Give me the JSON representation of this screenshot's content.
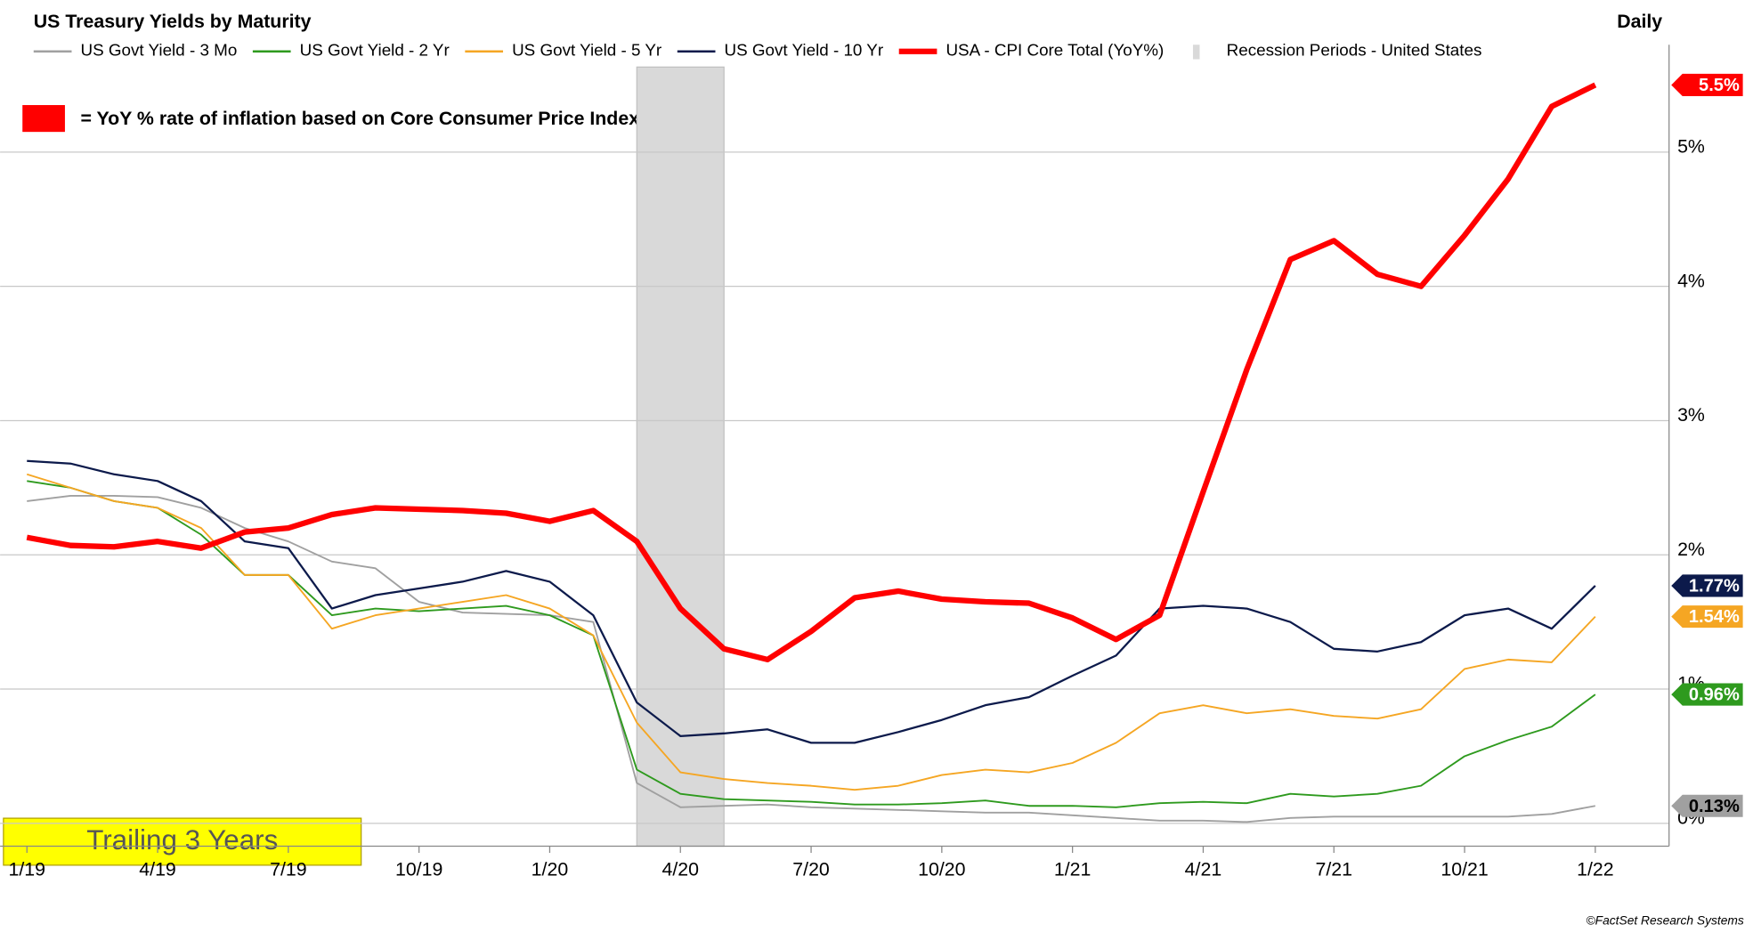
{
  "chart_data": {
    "type": "line",
    "title": "US Treasury Yields by Maturity",
    "subtitle": "Daily",
    "annotations": [
      "= YoY % rate of inflation based on Core Consumer Price Index",
      "Trailing 3 Years",
      "©FactSet Research Systems"
    ],
    "x": [
      "1/19",
      "2/19",
      "3/19",
      "4/19",
      "5/19",
      "6/19",
      "7/19",
      "8/19",
      "9/19",
      "10/19",
      "11/19",
      "12/19",
      "1/20",
      "2/20",
      "3/20",
      "4/20",
      "5/20",
      "6/20",
      "7/20",
      "8/20",
      "9/20",
      "10/20",
      "11/20",
      "12/20",
      "1/21",
      "2/21",
      "3/21",
      "4/21",
      "5/21",
      "6/21",
      "7/21",
      "8/21",
      "9/21",
      "10/21",
      "11/21",
      "12/21",
      "1/22"
    ],
    "xticks": [
      "1/19",
      "4/19",
      "7/19",
      "10/19",
      "1/20",
      "4/20",
      "7/20",
      "10/20",
      "1/21",
      "4/21",
      "7/21",
      "10/21",
      "1/22"
    ],
    "ylim": [
      -0.17,
      5.8
    ],
    "yticks": [
      {
        "value": 0,
        "label": "0%"
      },
      {
        "value": 1,
        "label": "1%"
      },
      {
        "value": 2,
        "label": "2%"
      },
      {
        "value": 3,
        "label": "3%"
      },
      {
        "value": 4,
        "label": "4%"
      },
      {
        "value": 5,
        "label": "5%"
      }
    ],
    "grid": true,
    "legend": "top",
    "recession": {
      "name": "Recession Periods - United States",
      "start": "3/20",
      "end": "5/20",
      "color": "#d9d9d9"
    },
    "series": [
      {
        "name": "US Govt Yield - 3 Mo",
        "color": "#a0a0a0",
        "width": 1.5,
        "values": [
          2.4,
          2.44,
          2.44,
          2.43,
          2.35,
          2.2,
          2.1,
          1.95,
          1.9,
          1.65,
          1.57,
          1.56,
          1.55,
          1.5,
          0.3,
          0.12,
          0.13,
          0.14,
          0.12,
          0.11,
          0.1,
          0.09,
          0.08,
          0.08,
          0.06,
          0.04,
          0.02,
          0.02,
          0.01,
          0.04,
          0.05,
          0.05,
          0.05,
          0.05,
          0.05,
          0.07,
          0.13
        ],
        "value_labels": [
          null,
          null,
          null,
          null,
          null,
          null,
          null,
          null,
          null,
          null,
          null,
          null,
          null,
          null,
          null,
          null,
          null,
          null,
          null,
          null,
          null,
          null,
          null,
          null,
          null,
          null,
          null,
          null,
          null,
          null,
          null,
          null,
          null,
          null,
          null,
          null,
          "0.13%"
        ]
      },
      {
        "name": "US Govt Yield - 2 Yr",
        "color": "#2e9a1e",
        "width": 1.5,
        "values": [
          2.55,
          2.5,
          2.4,
          2.35,
          2.15,
          1.85,
          1.85,
          1.55,
          1.6,
          1.58,
          1.6,
          1.62,
          1.55,
          1.4,
          0.4,
          0.22,
          0.18,
          0.17,
          0.16,
          0.14,
          0.14,
          0.15,
          0.17,
          0.13,
          0.13,
          0.12,
          0.15,
          0.16,
          0.15,
          0.22,
          0.2,
          0.22,
          0.28,
          0.5,
          0.62,
          0.72,
          0.96
        ],
        "value_labels": [
          null,
          null,
          null,
          null,
          null,
          null,
          null,
          null,
          null,
          null,
          null,
          null,
          null,
          null,
          null,
          null,
          null,
          null,
          null,
          null,
          null,
          null,
          null,
          null,
          null,
          null,
          null,
          null,
          null,
          null,
          null,
          null,
          null,
          null,
          null,
          null,
          "0.96%"
        ]
      },
      {
        "name": "US Govt Yield - 5 Yr",
        "color": "#f5a623",
        "width": 1.5,
        "values": [
          2.6,
          2.5,
          2.4,
          2.35,
          2.2,
          1.85,
          1.85,
          1.45,
          1.55,
          1.6,
          1.65,
          1.7,
          1.6,
          1.4,
          0.75,
          0.38,
          0.33,
          0.3,
          0.28,
          0.25,
          0.28,
          0.36,
          0.4,
          0.38,
          0.45,
          0.6,
          0.82,
          0.88,
          0.82,
          0.85,
          0.8,
          0.78,
          0.85,
          1.15,
          1.22,
          1.2,
          1.54
        ],
        "value_labels": [
          null,
          null,
          null,
          null,
          null,
          null,
          null,
          null,
          null,
          null,
          null,
          null,
          null,
          null,
          null,
          null,
          null,
          null,
          null,
          null,
          null,
          null,
          null,
          null,
          null,
          null,
          null,
          null,
          null,
          null,
          null,
          null,
          null,
          null,
          null,
          null,
          "1.54%"
        ]
      },
      {
        "name": "US Govt Yield - 10 Yr",
        "color": "#0c1a4b",
        "width": 1.8,
        "values": [
          2.7,
          2.68,
          2.6,
          2.55,
          2.4,
          2.1,
          2.05,
          1.6,
          1.7,
          1.75,
          1.8,
          1.88,
          1.8,
          1.55,
          0.9,
          0.65,
          0.67,
          0.7,
          0.6,
          0.6,
          0.68,
          0.77,
          0.88,
          0.94,
          1.1,
          1.25,
          1.6,
          1.62,
          1.6,
          1.5,
          1.3,
          1.28,
          1.35,
          1.55,
          1.6,
          1.45,
          1.77
        ],
        "value_labels": [
          null,
          null,
          null,
          null,
          null,
          null,
          null,
          null,
          null,
          null,
          null,
          null,
          null,
          null,
          null,
          null,
          null,
          null,
          null,
          null,
          null,
          null,
          null,
          null,
          null,
          null,
          null,
          null,
          null,
          null,
          null,
          null,
          null,
          null,
          null,
          null,
          "1.77%"
        ]
      },
      {
        "name": "USA - CPI Core Total (YoY%)",
        "color": "#ff0000",
        "width": 5,
        "values": [
          2.13,
          2.07,
          2.06,
          2.1,
          2.05,
          2.17,
          2.2,
          2.3,
          2.35,
          2.34,
          2.33,
          2.31,
          2.25,
          2.33,
          2.1,
          1.6,
          1.3,
          1.22,
          1.43,
          1.68,
          1.73,
          1.67,
          1.65,
          1.64,
          1.53,
          1.37,
          1.55,
          2.47,
          3.38,
          4.2,
          4.34,
          4.09,
          4.0,
          4.38,
          4.8,
          5.34,
          5.5
        ],
        "value_labels": [
          null,
          null,
          null,
          null,
          null,
          null,
          null,
          null,
          null,
          null,
          null,
          null,
          null,
          null,
          null,
          null,
          null,
          null,
          null,
          null,
          null,
          null,
          null,
          null,
          null,
          null,
          null,
          null,
          null,
          null,
          null,
          null,
          null,
          null,
          null,
          null,
          "5.5%"
        ]
      }
    ]
  }
}
